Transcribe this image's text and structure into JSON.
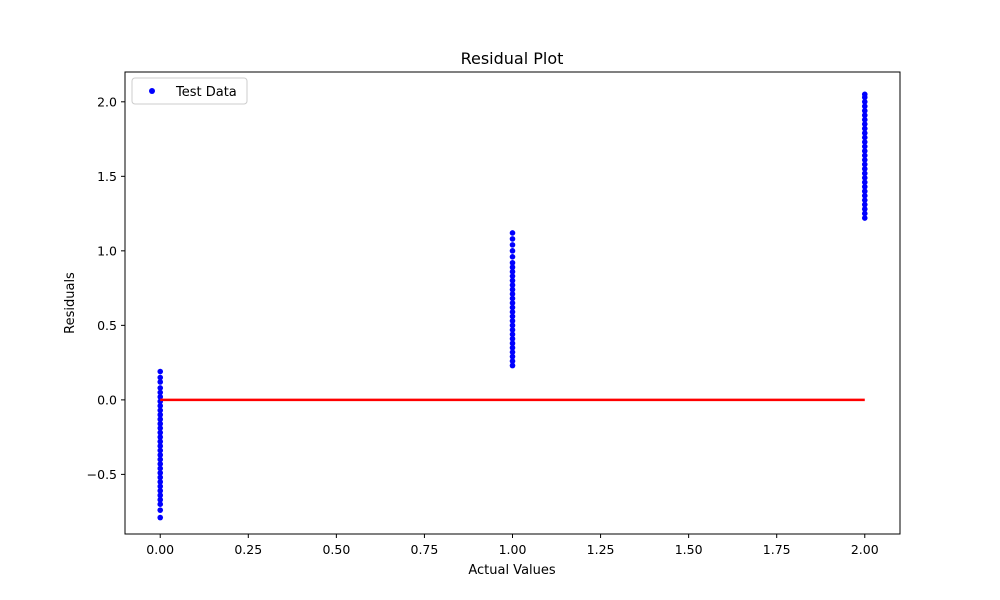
{
  "chart_data": {
    "type": "scatter",
    "title": "Residual Plot",
    "xlabel": "Actual Values",
    "ylabel": "Residuals",
    "xlim": [
      -0.1,
      2.1
    ],
    "ylim": [
      -0.9,
      2.2
    ],
    "xticks": [
      0.0,
      0.25,
      0.5,
      0.75,
      1.0,
      1.25,
      1.5,
      1.75,
      2.0
    ],
    "xtick_labels": [
      "0.00",
      "0.25",
      "0.50",
      "0.75",
      "1.00",
      "1.25",
      "1.50",
      "1.75",
      "2.00"
    ],
    "yticks": [
      -0.5,
      0.0,
      0.5,
      1.0,
      1.5,
      2.0
    ],
    "ytick_labels": [
      "−0.5",
      "0.0",
      "0.5",
      "1.0",
      "1.5",
      "2.0"
    ],
    "grid": false,
    "legend": {
      "position": "top-left",
      "entries": [
        "Test Data"
      ]
    },
    "series": [
      {
        "name": "Test Data",
        "kind": "scatter",
        "color": "#0000ff",
        "points": [
          [
            0,
            -0.79
          ],
          [
            0,
            -0.74
          ],
          [
            0,
            -0.7
          ],
          [
            0,
            -0.67
          ],
          [
            0,
            -0.64
          ],
          [
            0,
            -0.61
          ],
          [
            0,
            -0.58
          ],
          [
            0,
            -0.55
          ],
          [
            0,
            -0.52
          ],
          [
            0,
            -0.49
          ],
          [
            0,
            -0.46
          ],
          [
            0,
            -0.43
          ],
          [
            0,
            -0.4
          ],
          [
            0,
            -0.37
          ],
          [
            0,
            -0.34
          ],
          [
            0,
            -0.31
          ],
          [
            0,
            -0.28
          ],
          [
            0,
            -0.25
          ],
          [
            0,
            -0.22
          ],
          [
            0,
            -0.19
          ],
          [
            0,
            -0.16
          ],
          [
            0,
            -0.13
          ],
          [
            0,
            -0.1
          ],
          [
            0,
            -0.07
          ],
          [
            0,
            -0.04
          ],
          [
            0,
            -0.01
          ],
          [
            0,
            0.02
          ],
          [
            0,
            0.05
          ],
          [
            0,
            0.08
          ],
          [
            0,
            0.12
          ],
          [
            0,
            0.15
          ],
          [
            0,
            0.19
          ],
          [
            1,
            0.23
          ],
          [
            1,
            0.26
          ],
          [
            1,
            0.29
          ],
          [
            1,
            0.32
          ],
          [
            1,
            0.35
          ],
          [
            1,
            0.38
          ],
          [
            1,
            0.41
          ],
          [
            1,
            0.44
          ],
          [
            1,
            0.47
          ],
          [
            1,
            0.5
          ],
          [
            1,
            0.53
          ],
          [
            1,
            0.56
          ],
          [
            1,
            0.59
          ],
          [
            1,
            0.62
          ],
          [
            1,
            0.65
          ],
          [
            1,
            0.68
          ],
          [
            1,
            0.71
          ],
          [
            1,
            0.74
          ],
          [
            1,
            0.77
          ],
          [
            1,
            0.8
          ],
          [
            1,
            0.83
          ],
          [
            1,
            0.86
          ],
          [
            1,
            0.89
          ],
          [
            1,
            0.92
          ],
          [
            1,
            0.96
          ],
          [
            1,
            1.0
          ],
          [
            1,
            1.04
          ],
          [
            1,
            1.08
          ],
          [
            1,
            1.12
          ],
          [
            2,
            1.22
          ],
          [
            2,
            1.25
          ],
          [
            2,
            1.28
          ],
          [
            2,
            1.31
          ],
          [
            2,
            1.34
          ],
          [
            2,
            1.37
          ],
          [
            2,
            1.4
          ],
          [
            2,
            1.43
          ],
          [
            2,
            1.46
          ],
          [
            2,
            1.49
          ],
          [
            2,
            1.52
          ],
          [
            2,
            1.55
          ],
          [
            2,
            1.58
          ],
          [
            2,
            1.61
          ],
          [
            2,
            1.64
          ],
          [
            2,
            1.67
          ],
          [
            2,
            1.7
          ],
          [
            2,
            1.73
          ],
          [
            2,
            1.76
          ],
          [
            2,
            1.79
          ],
          [
            2,
            1.82
          ],
          [
            2,
            1.85
          ],
          [
            2,
            1.88
          ],
          [
            2,
            1.91
          ],
          [
            2,
            1.94
          ],
          [
            2,
            1.97
          ],
          [
            2,
            2.0
          ],
          [
            2,
            2.03
          ],
          [
            2,
            2.05
          ]
        ]
      },
      {
        "name": "",
        "kind": "line",
        "color": "#ff0000",
        "points": [
          [
            0,
            0
          ],
          [
            2,
            0
          ]
        ]
      }
    ]
  }
}
